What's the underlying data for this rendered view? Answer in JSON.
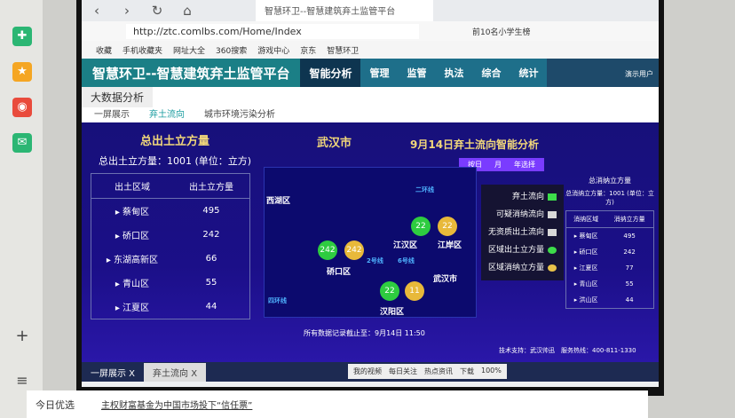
{
  "browser": {
    "tab_title": "智慧环卫--智慧建筑弃土监管平台",
    "url": "http://ztc.comlbs.com/Home/Index",
    "bookmarks": [
      "收藏",
      "手机收藏夹",
      "网址大全",
      "360搜索",
      "游戏中心",
      "京东",
      "智慧环卫"
    ],
    "search_hint": "前10名小学生榜"
  },
  "app": {
    "title": "智慧环卫--智慧建筑弃土监管平台",
    "menu": [
      "智能分析",
      "管理",
      "监管",
      "执法",
      "综合",
      "统计"
    ],
    "section": "大数据分析",
    "subtabs": [
      "一屏展示",
      "弃土流向",
      "城市环境污染分析"
    ],
    "user": "演示用户"
  },
  "left": {
    "heading": "总出土立方量",
    "summary": "总出土立方量：1001 (单位：立方)",
    "columns": [
      "出土区域",
      "出土立方量"
    ],
    "rows": [
      {
        "area": "蔡甸区",
        "value": "495"
      },
      {
        "area": "硚口区",
        "value": "242"
      },
      {
        "area": "东湖高新区",
        "value": "66"
      },
      {
        "area": "青山区",
        "value": "55"
      },
      {
        "area": "江夏区",
        "value": "44"
      }
    ]
  },
  "center": {
    "city": "武汉市",
    "title": "9月14日弃土流向智能分析",
    "ranges": [
      "按日",
      "月",
      "年选择"
    ],
    "districts": [
      "西湖区",
      "硚口区",
      "江汉区",
      "江岸区",
      "汉阳区",
      "武汉市"
    ],
    "bubbles": [
      {
        "v": "242",
        "c": "green"
      },
      {
        "v": "242",
        "c": "yellow"
      },
      {
        "v": "22",
        "c": "green"
      },
      {
        "v": "22",
        "c": "yellow"
      },
      {
        "v": "22",
        "c": "green"
      },
      {
        "v": "11",
        "c": "yellow"
      }
    ],
    "roads": [
      "二环线",
      "2号线",
      "6号线",
      "四环线"
    ],
    "note": "所有数据记录截止至：9月14日 11:50",
    "legend": [
      {
        "label": "弃土流向",
        "color": "#3ddc4a"
      },
      {
        "label": "可疑消纳流向",
        "color": "#d8d8d8"
      },
      {
        "label": "无资质出土流向",
        "color": "#d8d8d8"
      },
      {
        "label": "区域出土立方量",
        "color": "#3ddc4a"
      },
      {
        "label": "区域消纳立方量",
        "color": "#e8c24a"
      }
    ]
  },
  "right": {
    "heading": "总消纳立方量",
    "summary": "总消纳立方量：1001 (单位：立方)",
    "columns": [
      "消纳区域",
      "消纳立方量"
    ],
    "rows": [
      {
        "area": "蔡甸区",
        "value": "495"
      },
      {
        "area": "硚口区",
        "value": "242"
      },
      {
        "area": "江夏区",
        "value": "77"
      },
      {
        "area": "青山区",
        "value": "55"
      },
      {
        "area": "洪山区",
        "value": "44"
      }
    ]
  },
  "footer": {
    "support": "技术支持：武汉帅迅",
    "hotline": "服务热线：400-811-1330"
  },
  "bottom_tabs": [
    "一屏展示 X",
    "弃土流向 X"
  ],
  "status": [
    "我的视频",
    "每日关注",
    "热点资讯",
    "下载",
    "100%"
  ],
  "news": {
    "left": "今日优选",
    "headline": "主权财富基金为中国市场投下“信任票”"
  }
}
